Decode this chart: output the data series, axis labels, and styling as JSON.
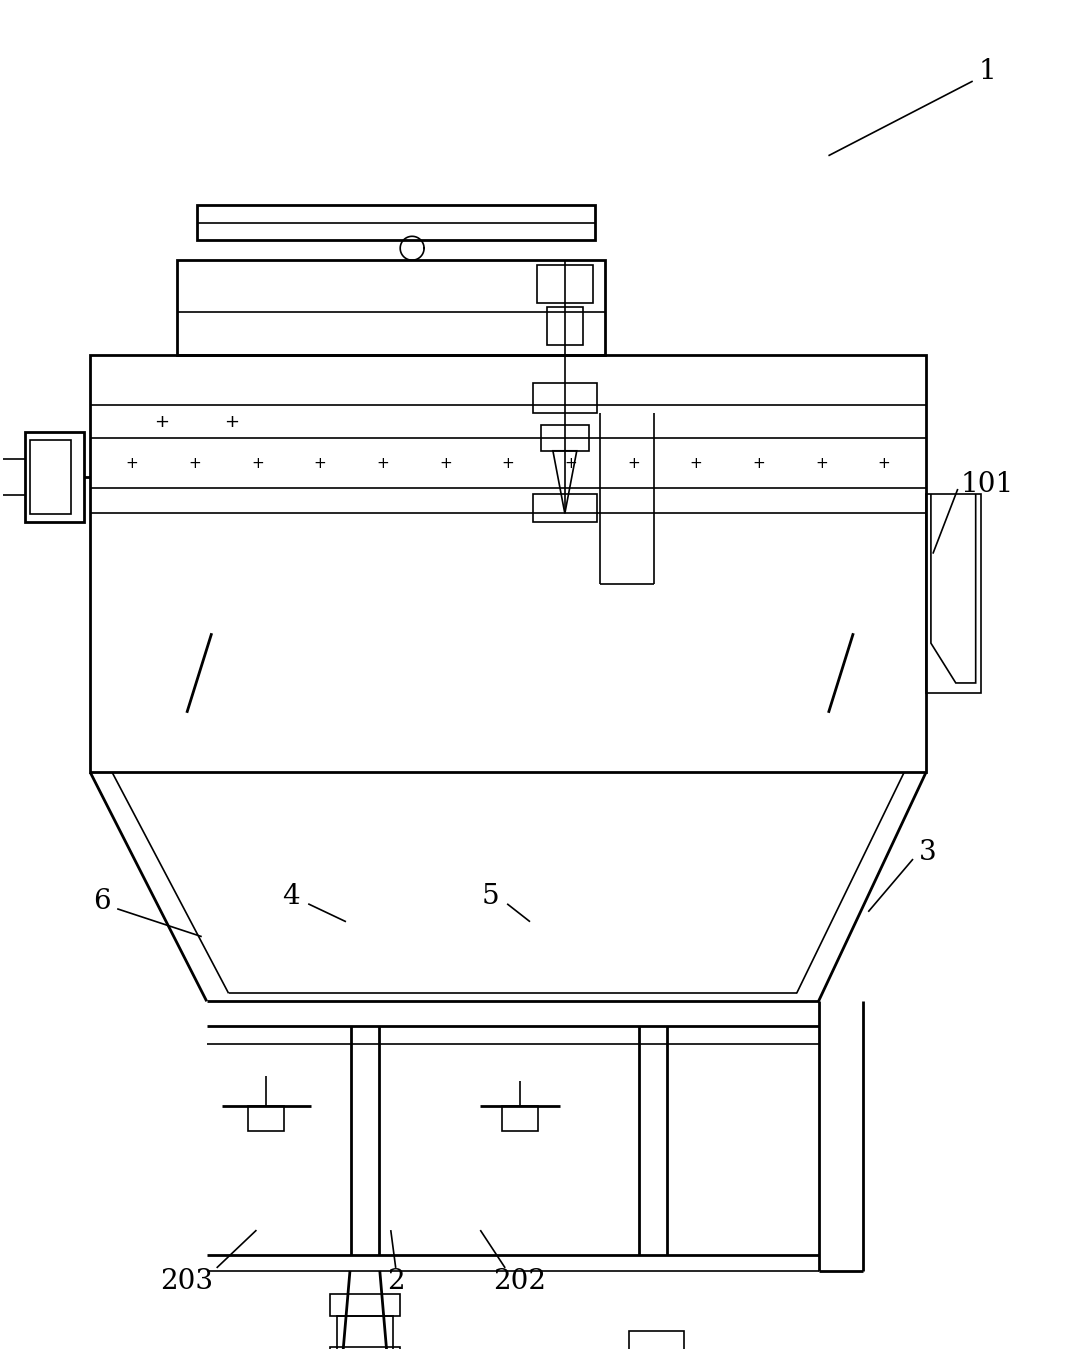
{
  "bg_color": "#ffffff",
  "lc": "#000000",
  "lw": 1.2,
  "lw2": 2.0,
  "fig_w": 10.67,
  "fig_h": 13.53
}
